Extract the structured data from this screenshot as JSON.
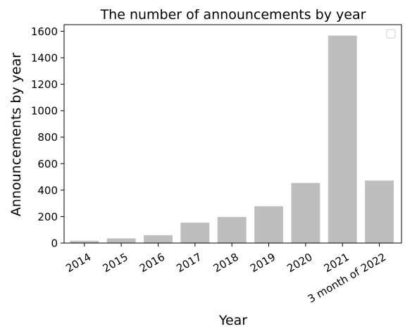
{
  "chart_data": {
    "type": "bar",
    "title": "The number of announcements by year",
    "xlabel": "Year",
    "ylabel": "Announcements by year",
    "categories": [
      "2014",
      "2015",
      "2016",
      "2017",
      "2018",
      "2019",
      "2020",
      "2021",
      "3 month of 2022"
    ],
    "values": [
      20,
      38,
      62,
      157,
      200,
      281,
      457,
      1570,
      475
    ],
    "ylim": [
      0,
      1650
    ],
    "yticks": [
      0,
      200,
      400,
      600,
      800,
      1000,
      1200,
      1400,
      1600
    ],
    "grid": false,
    "legend": "top-right, empty",
    "colors": {
      "bar": "#bebebe",
      "bar_edge": "#ffffff",
      "axes": "#000000"
    }
  }
}
